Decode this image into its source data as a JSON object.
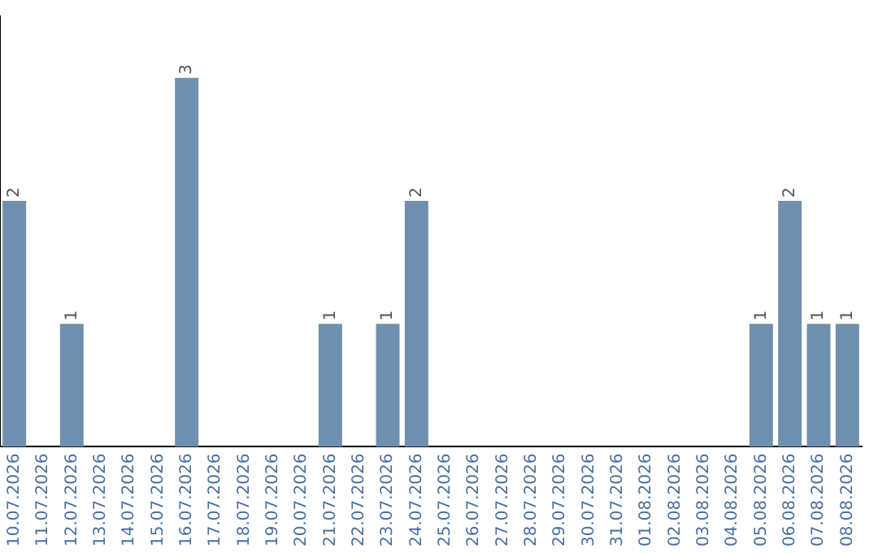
{
  "chart_data": {
    "type": "bar",
    "categories": [
      "10.07.2026",
      "11.07.2026",
      "12.07.2026",
      "13.07.2026",
      "14.07.2026",
      "15.07.2026",
      "16.07.2026",
      "17.07.2026",
      "18.07.2026",
      "19.07.2026",
      "20.07.2026",
      "21.07.2026",
      "22.07.2026",
      "23.07.2026",
      "24.07.2026",
      "25.07.2026",
      "26.07.2026",
      "27.07.2026",
      "28.07.2026",
      "29.07.2026",
      "30.07.2026",
      "31.07.2026",
      "01.08.2026",
      "02.08.2026",
      "03.08.2026",
      "04.08.2026",
      "05.08.2026",
      "06.08.2026",
      "07.08.2026",
      "08.08.2026"
    ],
    "values": [
      2,
      0,
      1,
      0,
      0,
      0,
      3,
      0,
      0,
      0,
      0,
      1,
      0,
      1,
      2,
      0,
      0,
      0,
      0,
      0,
      0,
      0,
      0,
      0,
      0,
      0,
      1,
      2,
      1,
      1
    ],
    "value_labels": [
      "2",
      null,
      "1",
      null,
      null,
      null,
      "3",
      null,
      null,
      null,
      null,
      "1",
      null,
      "1",
      "2",
      null,
      null,
      null,
      null,
      null,
      null,
      null,
      null,
      null,
      null,
      null,
      "1",
      "2",
      "1",
      "1"
    ],
    "color": "#6f8fae",
    "tick_labels": "x"
  }
}
